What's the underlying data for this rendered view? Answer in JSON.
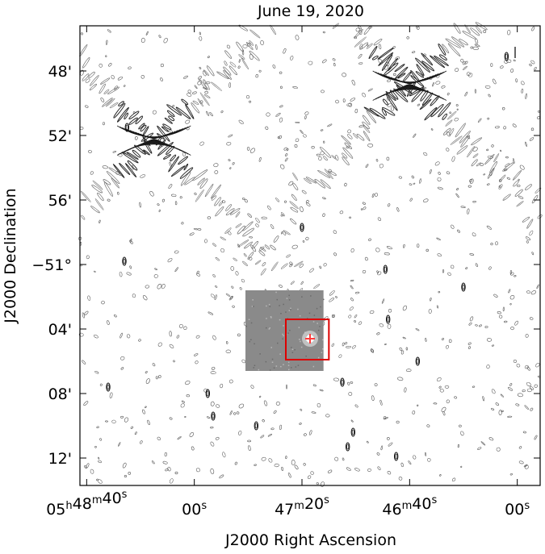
{
  "chart_data": {
    "type": "contour",
    "title": "June 19, 2020",
    "xlabel": "J2000 Right Ascension",
    "ylabel": "J2000 Declination",
    "x_ticks": [
      {
        "label": "05h48m40s",
        "ra_sec_rel": 40
      },
      {
        "label": "00s",
        "ra_sec_rel": 0
      },
      {
        "label": "47m20s",
        "ra_sec_rel": -40
      },
      {
        "label": "46m40s",
        "ra_sec_rel": -80
      },
      {
        "label": "00s",
        "ra_sec_rel": -120
      }
    ],
    "y_ticks": [
      {
        "label": "48'",
        "dec_arcmin": -48
      },
      {
        "label": "52'",
        "dec_arcmin": -52
      },
      {
        "label": "56'",
        "dec_arcmin": -56
      },
      {
        "label": "−51°",
        "dec_arcmin": -60
      },
      {
        "label": "04'",
        "dec_arcmin": -64
      },
      {
        "label": "08'",
        "dec_arcmin": -68
      },
      {
        "label": "12'",
        "dec_arcmin": -72
      }
    ],
    "xlim_ra_sec_rel": [
      42.5,
      -128.5
    ],
    "ylim_dec_arcmin": [
      -45.2,
      -73.7
    ],
    "grid": false,
    "background_inset": {
      "ra_sec_rel": [
        -19,
        -48
      ],
      "dec_arcmin": [
        -61.6,
        -66.6
      ],
      "color": "#8a8a8a"
    },
    "target_box": {
      "ra_sec_rel": [
        -34,
        -50
      ],
      "dec_arcmin": [
        -63.4,
        -65.9
      ],
      "color": "#dd0000"
    },
    "target_marker": {
      "ra_sec_rel": -43,
      "dec_arcmin": -64.6,
      "color": "#ff3b3b"
    },
    "sidelobe_centers": [
      {
        "ra_sec_rel": 15,
        "dec_arcmin": -52.2
      },
      {
        "ra_sec_rel": -80,
        "dec_arcmin": -48.8
      }
    ],
    "compact_sources": [
      {
        "ra_sec_rel": 25,
        "dec_arcmin": -51.5
      },
      {
        "ra_sec_rel": 26,
        "dec_arcmin": -59.8
      },
      {
        "ra_sec_rel": -40,
        "dec_arcmin": -57.7
      },
      {
        "ra_sec_rel": -71,
        "dec_arcmin": -60.3
      },
      {
        "ra_sec_rel": -100,
        "dec_arcmin": -61.4
      },
      {
        "ra_sec_rel": -72,
        "dec_arcmin": -63.4
      },
      {
        "ra_sec_rel": -83,
        "dec_arcmin": -66.0
      },
      {
        "ra_sec_rel": -55,
        "dec_arcmin": -67.3
      },
      {
        "ra_sec_rel": 32,
        "dec_arcmin": -67.6
      },
      {
        "ra_sec_rel": -5,
        "dec_arcmin": -68.0
      },
      {
        "ra_sec_rel": -7,
        "dec_arcmin": -69.4
      },
      {
        "ra_sec_rel": -23,
        "dec_arcmin": -70.0
      },
      {
        "ra_sec_rel": -59,
        "dec_arcmin": -70.4
      },
      {
        "ra_sec_rel": -57,
        "dec_arcmin": -71.3
      },
      {
        "ra_sec_rel": -75,
        "dec_arcmin": -71.9
      },
      {
        "ra_sec_rel": -116,
        "dec_arcmin": -47.1
      }
    ]
  }
}
